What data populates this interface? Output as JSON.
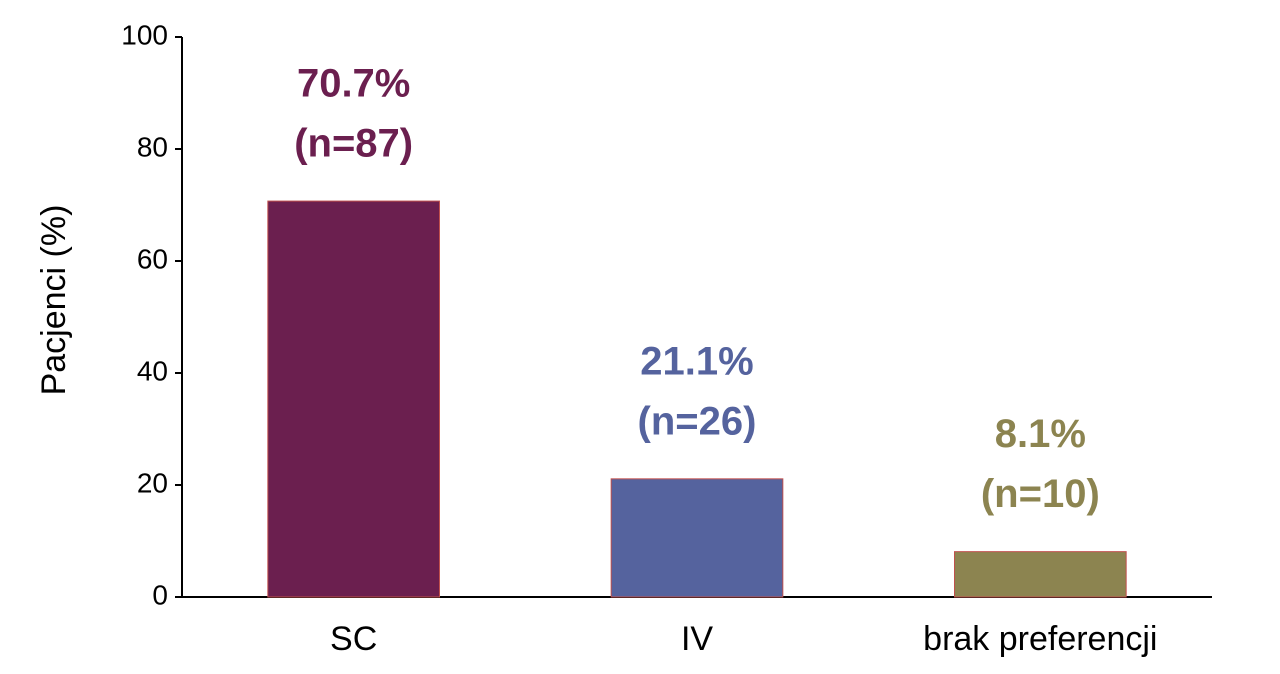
{
  "chart_data": {
    "type": "bar",
    "y_label": "Pacjenci (%)",
    "categories": [
      "SC",
      "IV",
      "brak preferencji"
    ],
    "values": [
      70.7,
      21.1,
      8.1
    ],
    "value_labels": [
      "70.7%",
      "21.1%",
      "8.1%"
    ],
    "count_labels": [
      "(n=87)",
      "(n=26)",
      "(n=10)"
    ],
    "colors": [
      "#6b1f4f",
      "#55639e",
      "#8c8450"
    ],
    "ylim": [
      0,
      100
    ],
    "yticks": [
      0,
      20,
      40,
      60,
      80,
      100
    ],
    "grid": false
  }
}
